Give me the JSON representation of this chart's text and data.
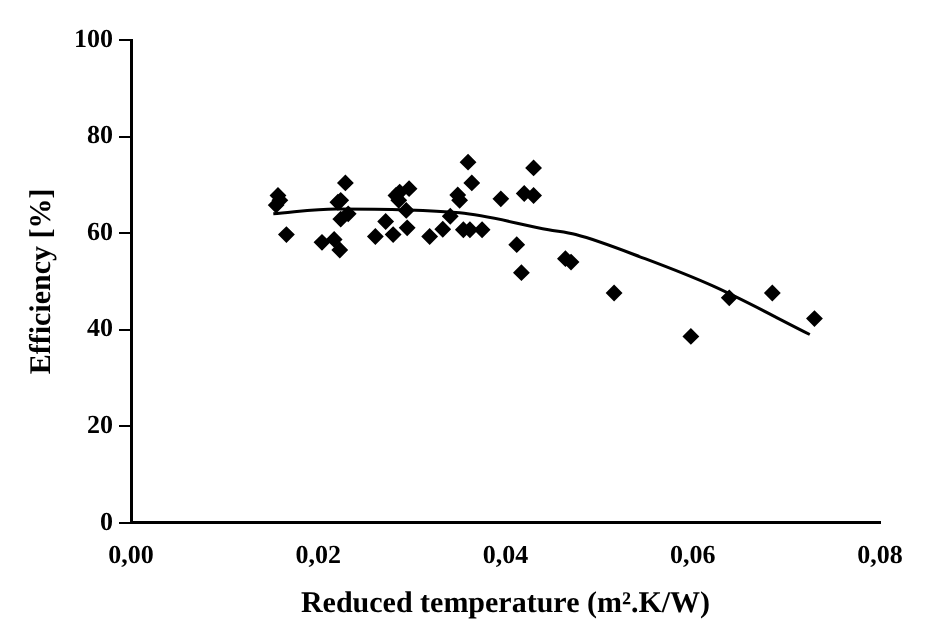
{
  "chart_data": {
    "type": "scatter",
    "xlabel": "Reduced temperature (m².K/W)",
    "ylabel": "Efficiency [%]",
    "xlim": [
      0,
      0.08
    ],
    "xticks": [
      {
        "value": 0,
        "label": "0,00"
      },
      {
        "value": 0.02,
        "label": "0,02"
      },
      {
        "value": 0.04,
        "label": "0,04"
      },
      {
        "value": 0.06,
        "label": "0,06"
      },
      {
        "value": 0.08,
        "label": "0,08"
      }
    ],
    "ylim": [
      0,
      100
    ],
    "yticks": [
      0,
      20,
      40,
      60,
      80,
      100
    ],
    "grid": false,
    "legend": false,
    "marker": "diamond",
    "series": [
      {
        "color": "#000000",
        "x": [
          0.0157,
          0.0159,
          0.0155,
          0.0166,
          0.0204,
          0.0217,
          0.0223,
          0.0221,
          0.0224,
          0.0229,
          0.0224,
          0.0232,
          0.0261,
          0.0272,
          0.028,
          0.0283,
          0.0287,
          0.0286,
          0.0297,
          0.0294,
          0.0295,
          0.0319,
          0.0333,
          0.0341,
          0.0349,
          0.0351,
          0.036,
          0.0364,
          0.0355,
          0.0362,
          0.0375,
          0.0395,
          0.0412,
          0.0417,
          0.042,
          0.043,
          0.043,
          0.0464,
          0.047,
          0.0516,
          0.0598,
          0.0639,
          0.0685,
          0.073
        ],
        "values": [
          67.8,
          66.8,
          65.8,
          59.7,
          58.1,
          58.7,
          56.5,
          66.4,
          66.8,
          70.4,
          62.9,
          64,
          59.3,
          62.4,
          59.7,
          67.8,
          68.5,
          66.8,
          69.2,
          64.7,
          61.1,
          59.3,
          60.8,
          63.5,
          67.9,
          66.8,
          74.7,
          70.4,
          60.7,
          60.7,
          60.7,
          67.1,
          57.6,
          51.8,
          68.2,
          67.8,
          73.5,
          54.7,
          54,
          47.6,
          38.6,
          46.6,
          47.6,
          42.3
        ]
      },
      {
        "type": "line",
        "color": "#000000",
        "marker": "none",
        "x": [
          0.0152,
          0.0219,
          0.0351,
          0.0446,
          0.0475,
          0.0549,
          0.0622,
          0.0725
        ],
        "values": [
          64,
          65,
          64.2,
          60.7,
          59.7,
          54.7,
          49,
          39
        ]
      }
    ]
  }
}
